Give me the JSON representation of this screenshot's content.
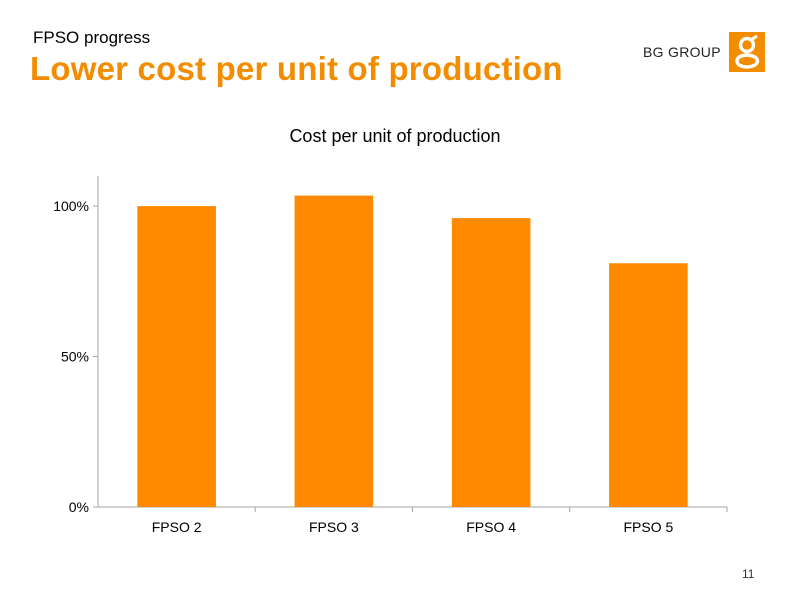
{
  "header": {
    "subtitle": "FPSO progress",
    "title": "Lower cost per unit of production",
    "logo_text": "BG GROUP",
    "logo_icon": "bg-group-logo-icon"
  },
  "colors": {
    "accent": "#f28c00",
    "bar": "#ff8a00",
    "axis": "#a6a6a6"
  },
  "footer": {
    "page_number": "11"
  },
  "chart_data": {
    "type": "bar",
    "title": "Cost per unit of production",
    "categories": [
      "FPSO 2",
      "FPSO 3",
      "FPSO 4",
      "FPSO 5"
    ],
    "series": [
      {
        "values": [
          100,
          103.5,
          96,
          81
        ]
      }
    ],
    "ylim": [
      0,
      110
    ],
    "yticks": [
      0,
      50,
      100
    ],
    "ytick_labels": [
      "0%",
      "50%",
      "100%"
    ],
    "xlabel": "",
    "ylabel": "",
    "grid": false,
    "legend": "none"
  }
}
